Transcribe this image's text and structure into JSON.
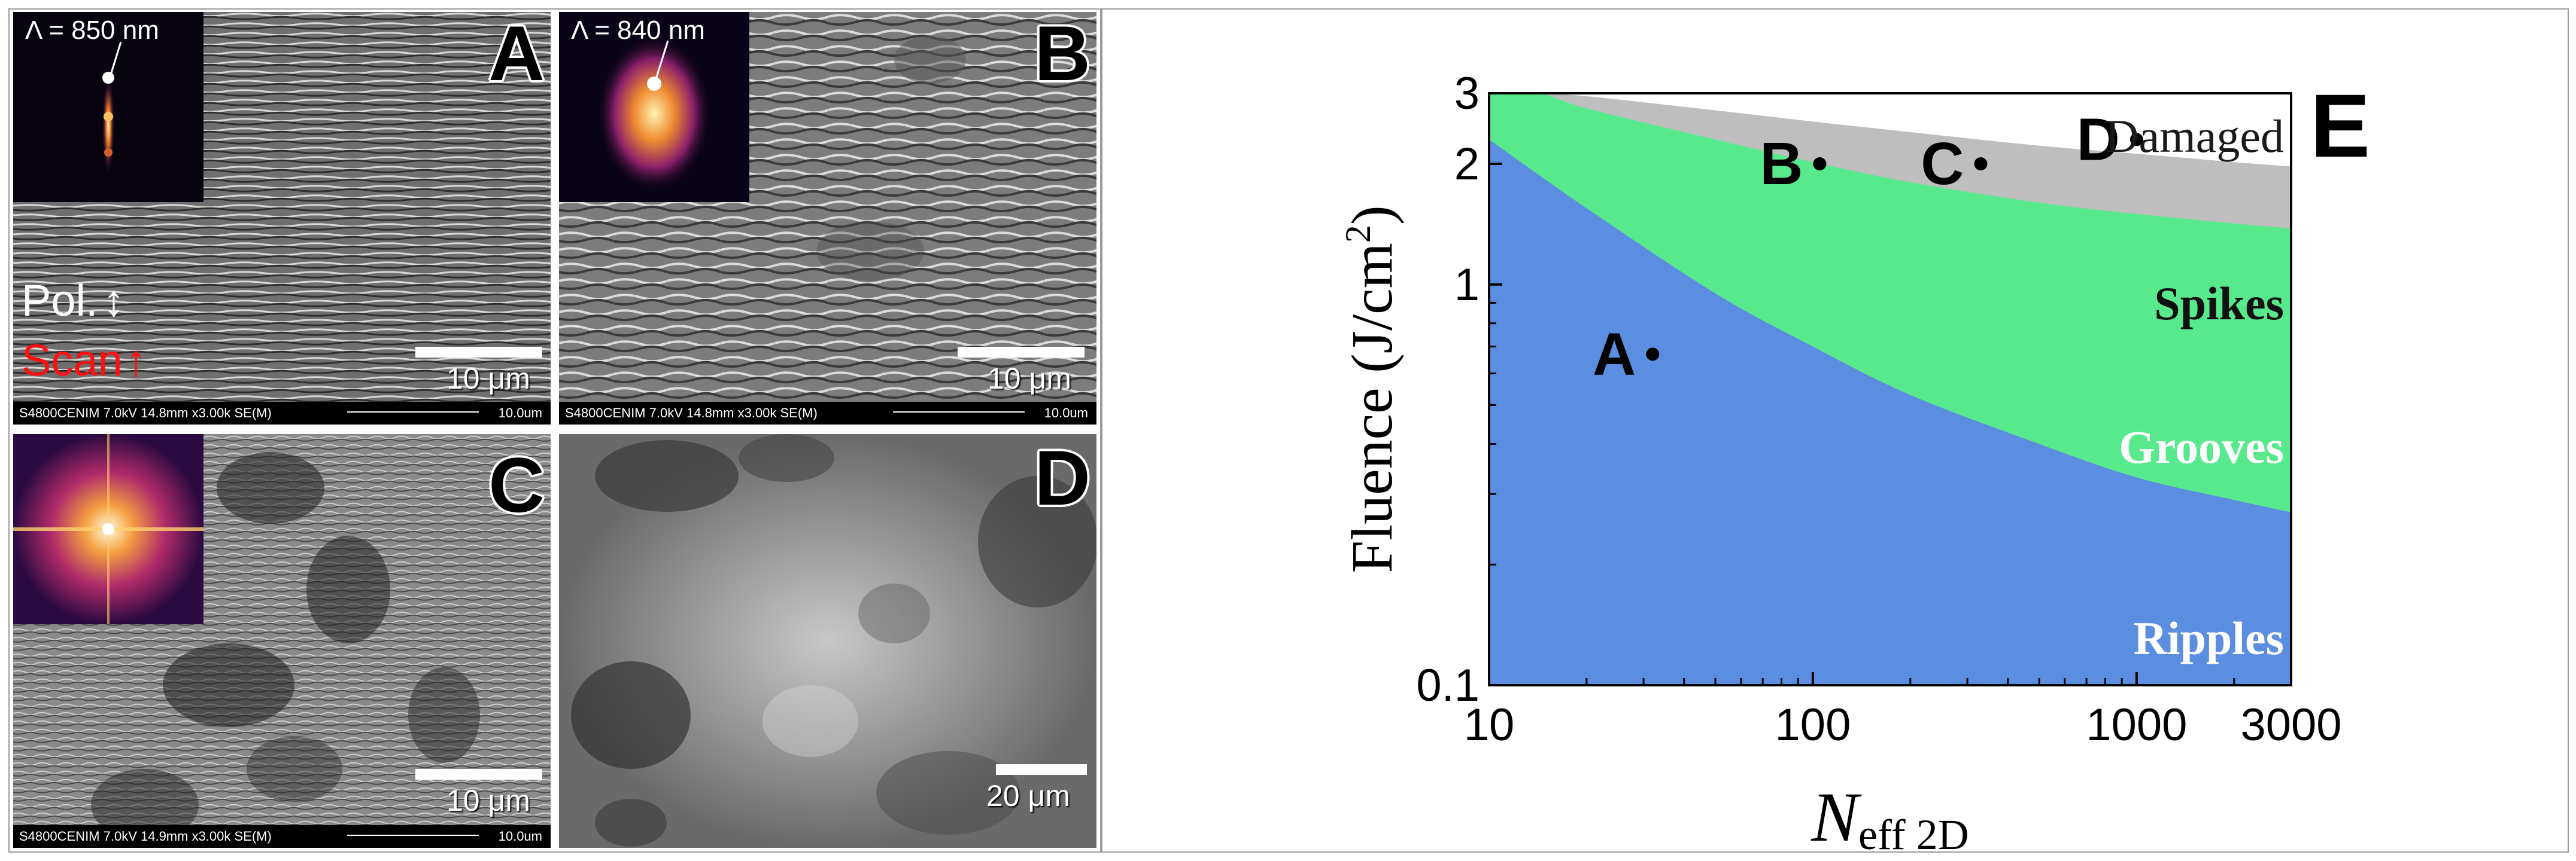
{
  "panels": {
    "a": {
      "letter": "A",
      "inset_label": "Λ = 850 nm",
      "scale_text": "10 μm",
      "pol_label": "Pol.",
      "scan_label": "Scan",
      "footer_left": "S4800CENIM 7.0kV 14.8mm x3.00k SE(M)",
      "footer_right": "10.0um"
    },
    "b": {
      "letter": "B",
      "inset_label": "Λ = 840 nm",
      "scale_text": "10 μm",
      "footer_left": "S4800CENIM 7.0kV 14.8mm x3.00k SE(M)",
      "footer_right": "10.0um"
    },
    "c": {
      "letter": "C",
      "scale_text": "10 μm",
      "footer_left": "S4800CENIM 7.0kV 14.9mm x3.00k SE(M)",
      "footer_right": "10.0um"
    },
    "d": {
      "letter": "D",
      "scale_text": "20 μm"
    }
  },
  "chart_data": {
    "type": "area",
    "panel_letter": "E",
    "xlabel_main": "N",
    "xlabel_sub": "eff 2D",
    "ylabel": "Fluence (J/cm",
    "ylabel_sup": "2",
    "ylabel_close": ")",
    "x_scale": "log",
    "y_scale": "log",
    "xlim": [
      10,
      3000
    ],
    "ylim": [
      0.1,
      3
    ],
    "x_ticks": [
      10,
      100,
      1000,
      3000
    ],
    "x_tick_labels": [
      "10",
      "100",
      "1000",
      "3000"
    ],
    "y_ticks": [
      0.1,
      1,
      2,
      3
    ],
    "y_tick_labels": [
      "0.1",
      "1",
      "2",
      "3"
    ],
    "regions": [
      {
        "name": "Ripples",
        "color": "#5b8ee0",
        "upper_boundary": {
          "x": [
            10,
            20,
            50,
            100,
            200,
            500,
            1000,
            2000,
            3000
          ],
          "y": [
            2.3,
            1.55,
            0.95,
            0.7,
            0.53,
            0.4,
            0.33,
            0.29,
            0.27
          ]
        }
      },
      {
        "name": "Grooves",
        "color": "#59e98d",
        "upper_boundary": {
          "x": [
            10,
            14.3,
            20,
            50,
            100,
            200,
            500,
            1000,
            2000,
            3000
          ],
          "y": [
            3,
            3,
            2.75,
            2.3,
            2.02,
            1.8,
            1.6,
            1.5,
            1.42,
            1.38
          ]
        }
      },
      {
        "name": "Spikes",
        "color": "#bebebe",
        "upper_boundary": {
          "x": [
            14.3,
            20,
            50,
            100,
            200,
            500,
            1000,
            2000,
            3000
          ],
          "y": [
            3,
            2.95,
            2.72,
            2.55,
            2.4,
            2.22,
            2.12,
            2.02,
            1.97
          ]
        }
      },
      {
        "name": "Damaged",
        "color": "#ffffff"
      }
    ],
    "points": [
      {
        "label": "A",
        "x": 32,
        "y": 0.67
      },
      {
        "label": "B",
        "x": 105,
        "y": 2.0
      },
      {
        "label": "C",
        "x": 330,
        "y": 2.0
      },
      {
        "label": "D",
        "x": 1000,
        "y": 2.3
      }
    ],
    "region_labels": [
      "Damaged",
      "Spikes",
      "Grooves",
      "Ripples"
    ]
  }
}
